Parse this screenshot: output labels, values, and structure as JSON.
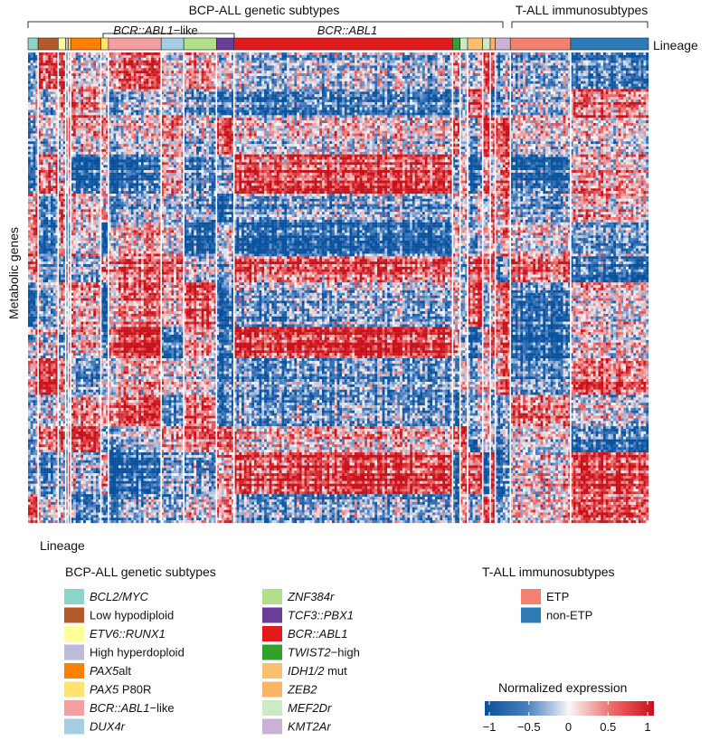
{
  "header": {
    "bcp_title": "BCP-ALL genetic subtypes",
    "tall_title": "T-ALL immunosubtypes",
    "bcr_like_label_italic": "BCR::ABL1",
    "bcr_like_label_suffix": "−like",
    "bcr_label": "BCR::ABL1",
    "lineage_label": "Lineage"
  },
  "y_axis_label": "Metabolic genes",
  "legend": {
    "title": "Lineage",
    "bcp_heading": "BCP-ALL genetic subtypes",
    "tall_heading": "T-ALL immunosubtypes",
    "bcp_col1": [
      {
        "parts": [
          {
            "t": "BCL2/MYC",
            "i": true
          }
        ],
        "color": "#8dd3c7"
      },
      {
        "parts": [
          {
            "t": "Low hypodiploid",
            "i": false
          }
        ],
        "color": "#b35a2a"
      },
      {
        "parts": [
          {
            "t": "ETV6::RUNX1",
            "i": true
          }
        ],
        "color": "#ffff99"
      },
      {
        "parts": [
          {
            "t": "High hyperdoploid",
            "i": false
          }
        ],
        "color": "#bebada"
      },
      {
        "parts": [
          {
            "t": "PAX5",
            "i": true
          },
          {
            "t": "alt",
            "i": false
          }
        ],
        "color": "#ff7f00"
      },
      {
        "parts": [
          {
            "t": "PAX5",
            "i": true
          },
          {
            "t": " P80R",
            "i": false
          }
        ],
        "color": "#ffe36e"
      },
      {
        "parts": [
          {
            "t": "BCR::ABL1",
            "i": true
          },
          {
            "t": "−like",
            "i": false
          }
        ],
        "color": "#f4a0a0"
      },
      {
        "parts": [
          {
            "t": "DUX4r",
            "i": true
          }
        ],
        "color": "#a6cee3"
      }
    ],
    "bcp_col2": [
      {
        "parts": [
          {
            "t": "ZNF384r",
            "i": true
          }
        ],
        "color": "#b2df8a"
      },
      {
        "parts": [
          {
            "t": "TCF3::PBX1",
            "i": true
          }
        ],
        "color": "#6a3d9a"
      },
      {
        "parts": [
          {
            "t": "BCR::ABL1",
            "i": true
          }
        ],
        "color": "#e31a1c"
      },
      {
        "parts": [
          {
            "t": "TWIST2",
            "i": true
          },
          {
            "t": "−high",
            "i": false
          }
        ],
        "color": "#33a02c"
      },
      {
        "parts": [
          {
            "t": "IDH1/2",
            "i": true
          },
          {
            "t": " mut",
            "i": false
          }
        ],
        "color": "#fdbf6f"
      },
      {
        "parts": [
          {
            "t": "ZEB2",
            "i": true
          }
        ],
        "color": "#fdb462"
      },
      {
        "parts": [
          {
            "t": "MEF2Dr",
            "i": true
          }
        ],
        "color": "#ccebc5"
      },
      {
        "parts": [
          {
            "t": "KMT2Ar",
            "i": true
          }
        ],
        "color": "#cab2d6"
      }
    ],
    "tall_items": [
      {
        "label": "ETP",
        "color": "#f4816f"
      },
      {
        "label": "non-ETP",
        "color": "#2c7bb6"
      }
    ],
    "colorbar": {
      "title": "Normalized expression",
      "ticks": [
        "−1",
        "−0.5",
        "0",
        "0.5",
        "1"
      ],
      "min": -1,
      "max": 1,
      "colors": [
        "#08519c",
        "#4a7fc1",
        "#f7f7f7",
        "#ef6a6a",
        "#c8101a"
      ]
    }
  },
  "chart_data": {
    "type": "heatmap",
    "ylabel": "Metabolic genes",
    "value_range": [
      -1,
      1
    ],
    "column_groups": [
      {
        "label": "BCL2/MYC",
        "lineage": "BCP-ALL",
        "n": 4,
        "color": "#8dd3c7"
      },
      {
        "label": "Low hypodiploid",
        "lineage": "BCP-ALL",
        "n": 8,
        "color": "#b35a2a"
      },
      {
        "label": "ETV6::RUNX1",
        "lineage": "BCP-ALL",
        "n": 3,
        "color": "#ffff99"
      },
      {
        "label": "High hyperdoploid",
        "lineage": "BCP-ALL",
        "n": 1,
        "color": "#bebada"
      },
      {
        "label": "PAX5 P80R",
        "lineage": "BCP-ALL",
        "n": 1,
        "color": "#ffe36e"
      },
      {
        "label": "PAX5alt",
        "lineage": "BCP-ALL",
        "n": 12,
        "color": "#ff7f00"
      },
      {
        "label": "PAX5 P80R",
        "lineage": "BCP-ALL",
        "n": 3,
        "color": "#ffe36e"
      },
      {
        "label": "BCR::ABL1-like",
        "lineage": "BCP-ALL",
        "n": 21,
        "color": "#f4a0a0"
      },
      {
        "label": "DUX4r",
        "lineage": "BCP-ALL",
        "n": 9,
        "color": "#a6cee3"
      },
      {
        "label": "ZNF384r",
        "lineage": "BCP-ALL",
        "n": 13,
        "color": "#b2df8a"
      },
      {
        "label": "TCF3::PBX1",
        "lineage": "BCP-ALL",
        "n": 7,
        "color": "#6a3d9a"
      },
      {
        "label": "BCR::ABL1",
        "lineage": "BCP-ALL",
        "n": 87,
        "color": "#e31a1c"
      },
      {
        "label": "TWIST2-high",
        "lineage": "BCP-ALL",
        "n": 3,
        "color": "#33a02c"
      },
      {
        "label": "MEF2Dr",
        "lineage": "BCP-ALL",
        "n": 3,
        "color": "#ccebc5"
      },
      {
        "label": "IDH1/2 mut",
        "lineage": "BCP-ALL",
        "n": 6,
        "color": "#fdbf6f"
      },
      {
        "label": "MEF2Dr",
        "lineage": "BCP-ALL",
        "n": 3,
        "color": "#ccebc5"
      },
      {
        "label": "ZEB2",
        "lineage": "BCP-ALL",
        "n": 2,
        "color": "#fdb462"
      },
      {
        "label": "KMT2Ar",
        "lineage": "BCP-ALL",
        "n": 6,
        "color": "#cab2d6"
      },
      {
        "label": "ETP",
        "lineage": "T-ALL",
        "n": 24,
        "color": "#f4816f"
      },
      {
        "label": "non-ETP",
        "lineage": "T-ALL",
        "n": 31,
        "color": "#2c7bb6"
      }
    ],
    "n_genes": 180,
    "pattern_note": "Randomized block structure approximating visible red/blue expression clusters"
  }
}
